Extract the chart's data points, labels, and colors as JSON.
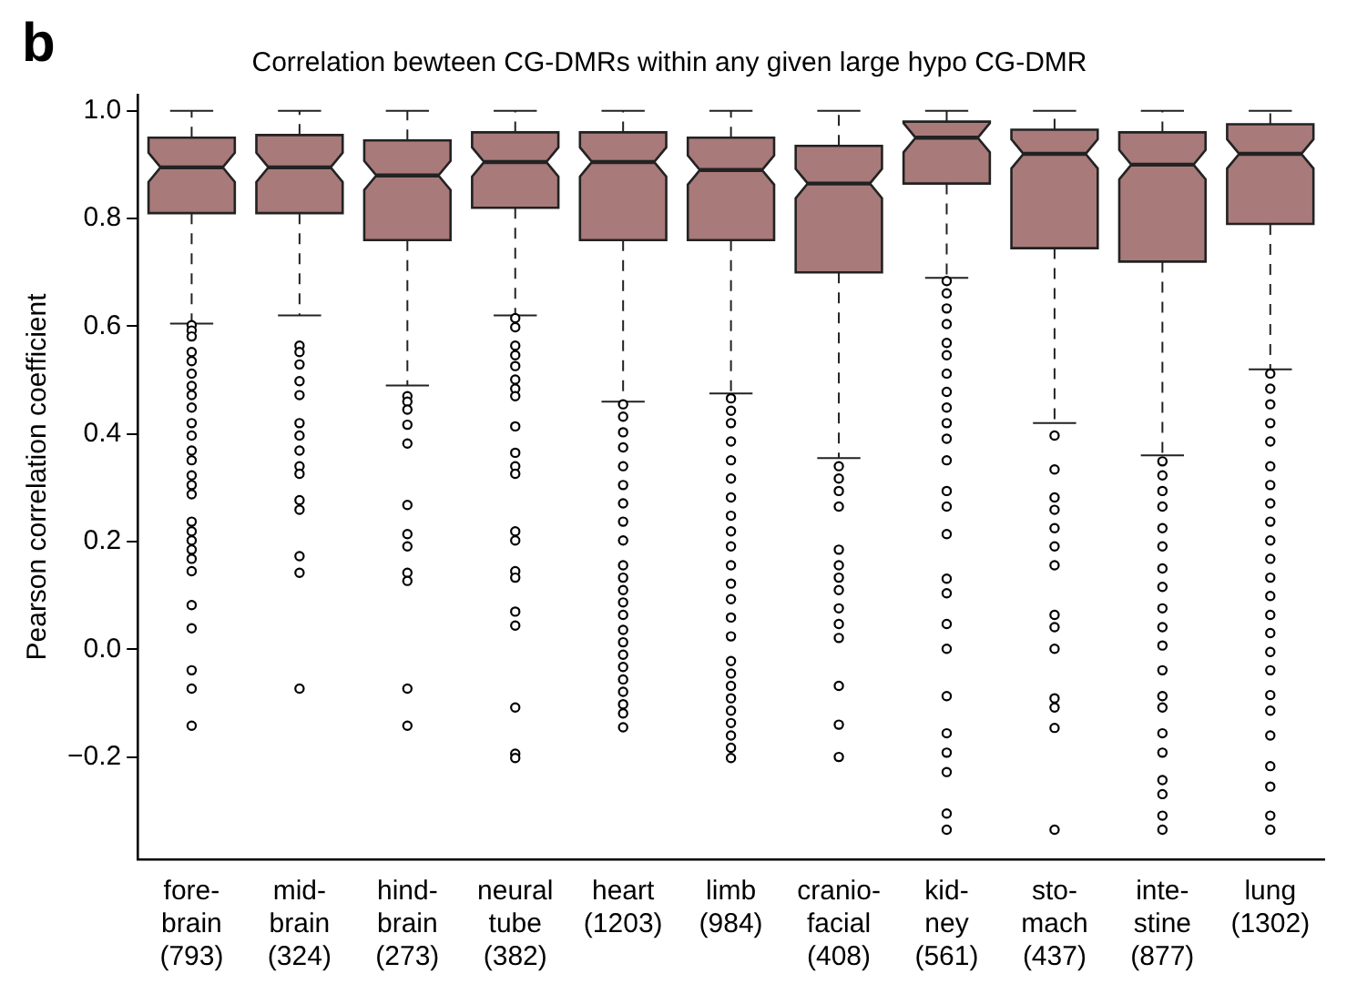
{
  "chart_data": {
    "type": "box",
    "title": "Correlation bewteen CG-DMRs within any given large hypo CG-DMR",
    "ylabel": "Pearson correlation coefficient",
    "annotations": [
      "b"
    ],
    "categories": [
      "fore-\nbrain\n(793)",
      "mid-\nbrain\n(324)",
      "hind-\nbrain\n(273)",
      "neural\ntube\n(382)",
      "heart\n(1203)",
      "limb\n(984)",
      "cranio-\nfacial\n(408)",
      "kid-\nney\n(561)",
      "sto-\nmach\n(437)",
      "inte-\nstine\n(877)",
      "lung\n(1302)"
    ],
    "color": "#a97a7a",
    "grid": false,
    "legend": false,
    "marker": "circle",
    "ylim": [
      -0.39,
      1.03
    ],
    "yticks": [
      {
        "value": -0.2,
        "label": "−0.2"
      },
      {
        "value": 0,
        "label": "0.0"
      },
      {
        "value": 0.2,
        "label": "0.2"
      },
      {
        "value": 0.4,
        "label": "0.4"
      },
      {
        "value": 0.6,
        "label": "0.6"
      },
      {
        "value": 0.8,
        "label": "0.8"
      },
      {
        "value": 1,
        "label": "1.0"
      }
    ],
    "boxes": [
      {
        "low": 0.605,
        "q1": 0.81,
        "median": 0.895,
        "q3": 0.95,
        "high": 1.0,
        "outliers": [
          0.602,
          0.592,
          0.581,
          0.552,
          0.535,
          0.512,
          0.489,
          0.472,
          0.449,
          0.42,
          0.397,
          0.369,
          0.351,
          0.323,
          0.305,
          0.288,
          0.237,
          0.219,
          0.202,
          0.185,
          0.168,
          0.145,
          0.082,
          0.039,
          -0.039,
          -0.073,
          -0.142
        ]
      },
      {
        "low": 0.62,
        "q1": 0.81,
        "median": 0.895,
        "q3": 0.955,
        "high": 1.0,
        "outliers": [
          0.564,
          0.552,
          0.529,
          0.498,
          0.472,
          0.42,
          0.397,
          0.369,
          0.34,
          0.326,
          0.277,
          0.259,
          0.173,
          0.142,
          -0.073
        ]
      },
      {
        "low": 0.49,
        "q1": 0.76,
        "median": 0.88,
        "q3": 0.945,
        "high": 1.0,
        "outliers": [
          0.47,
          0.46,
          0.445,
          0.417,
          0.382,
          0.268,
          0.214,
          0.191,
          0.142,
          0.127,
          -0.073,
          -0.142
        ]
      },
      {
        "low": 0.62,
        "q1": 0.82,
        "median": 0.905,
        "q3": 0.96,
        "high": 1.0,
        "outliers": [
          0.615,
          0.598,
          0.564,
          0.546,
          0.526,
          0.501,
          0.484,
          0.47,
          0.414,
          0.365,
          0.34,
          0.326,
          0.219,
          0.202,
          0.145,
          0.133,
          0.07,
          0.044,
          -0.108,
          -0.194,
          -0.202
        ]
      },
      {
        "low": 0.46,
        "q1": 0.76,
        "median": 0.905,
        "q3": 0.96,
        "high": 1.0,
        "outliers": [
          0.455,
          0.432,
          0.403,
          0.375,
          0.34,
          0.305,
          0.271,
          0.237,
          0.202,
          0.156,
          0.133,
          0.11,
          0.087,
          0.064,
          0.036,
          0.013,
          -0.01,
          -0.033,
          -0.056,
          -0.079,
          -0.102,
          -0.119,
          -0.145
        ]
      },
      {
        "low": 0.475,
        "q1": 0.76,
        "median": 0.89,
        "q3": 0.95,
        "high": 1.0,
        "outliers": [
          0.466,
          0.443,
          0.42,
          0.386,
          0.351,
          0.317,
          0.282,
          0.248,
          0.219,
          0.191,
          0.156,
          0.122,
          0.093,
          0.059,
          0.024,
          -0.022,
          -0.045,
          -0.068,
          -0.091,
          -0.114,
          -0.137,
          -0.16,
          -0.183,
          -0.202
        ]
      },
      {
        "low": 0.355,
        "q1": 0.7,
        "median": 0.865,
        "q3": 0.935,
        "high": 1.0,
        "outliers": [
          0.34,
          0.317,
          0.294,
          0.265,
          0.185,
          0.156,
          0.133,
          0.11,
          0.076,
          0.047,
          0.021,
          -0.068,
          -0.14,
          -0.2
        ]
      },
      {
        "low": 0.69,
        "q1": 0.865,
        "median": 0.95,
        "q3": 0.98,
        "high": 1.0,
        "outliers": [
          0.684,
          0.661,
          0.633,
          0.604,
          0.569,
          0.546,
          0.512,
          0.478,
          0.449,
          0.42,
          0.391,
          0.351,
          0.294,
          0.265,
          0.214,
          0.131,
          0.104,
          0.047,
          0.001,
          -0.087,
          -0.156,
          -0.192,
          -0.228,
          -0.305,
          -0.335
        ]
      },
      {
        "low": 0.42,
        "q1": 0.745,
        "median": 0.92,
        "q3": 0.965,
        "high": 1.0,
        "outliers": [
          0.397,
          0.334,
          0.282,
          0.259,
          0.225,
          0.191,
          0.156,
          0.064,
          0.041,
          0.001,
          -0.091,
          -0.108,
          -0.146,
          -0.335
        ]
      },
      {
        "low": 0.36,
        "q1": 0.72,
        "median": 0.9,
        "q3": 0.96,
        "high": 1.0,
        "outliers": [
          0.349,
          0.323,
          0.294,
          0.265,
          0.225,
          0.191,
          0.15,
          0.116,
          0.076,
          0.041,
          0.007,
          -0.039,
          -0.087,
          -0.108,
          -0.156,
          -0.192,
          -0.243,
          -0.269,
          -0.309,
          -0.335
        ]
      },
      {
        "low": 0.52,
        "q1": 0.79,
        "median": 0.92,
        "q3": 0.975,
        "high": 1.0,
        "outliers": [
          0.512,
          0.484,
          0.455,
          0.42,
          0.386,
          0.34,
          0.305,
          0.271,
          0.237,
          0.202,
          0.168,
          0.133,
          0.099,
          0.064,
          0.03,
          -0.005,
          -0.039,
          -0.085,
          -0.114,
          -0.16,
          -0.217,
          -0.255,
          -0.309,
          -0.335
        ]
      }
    ]
  }
}
